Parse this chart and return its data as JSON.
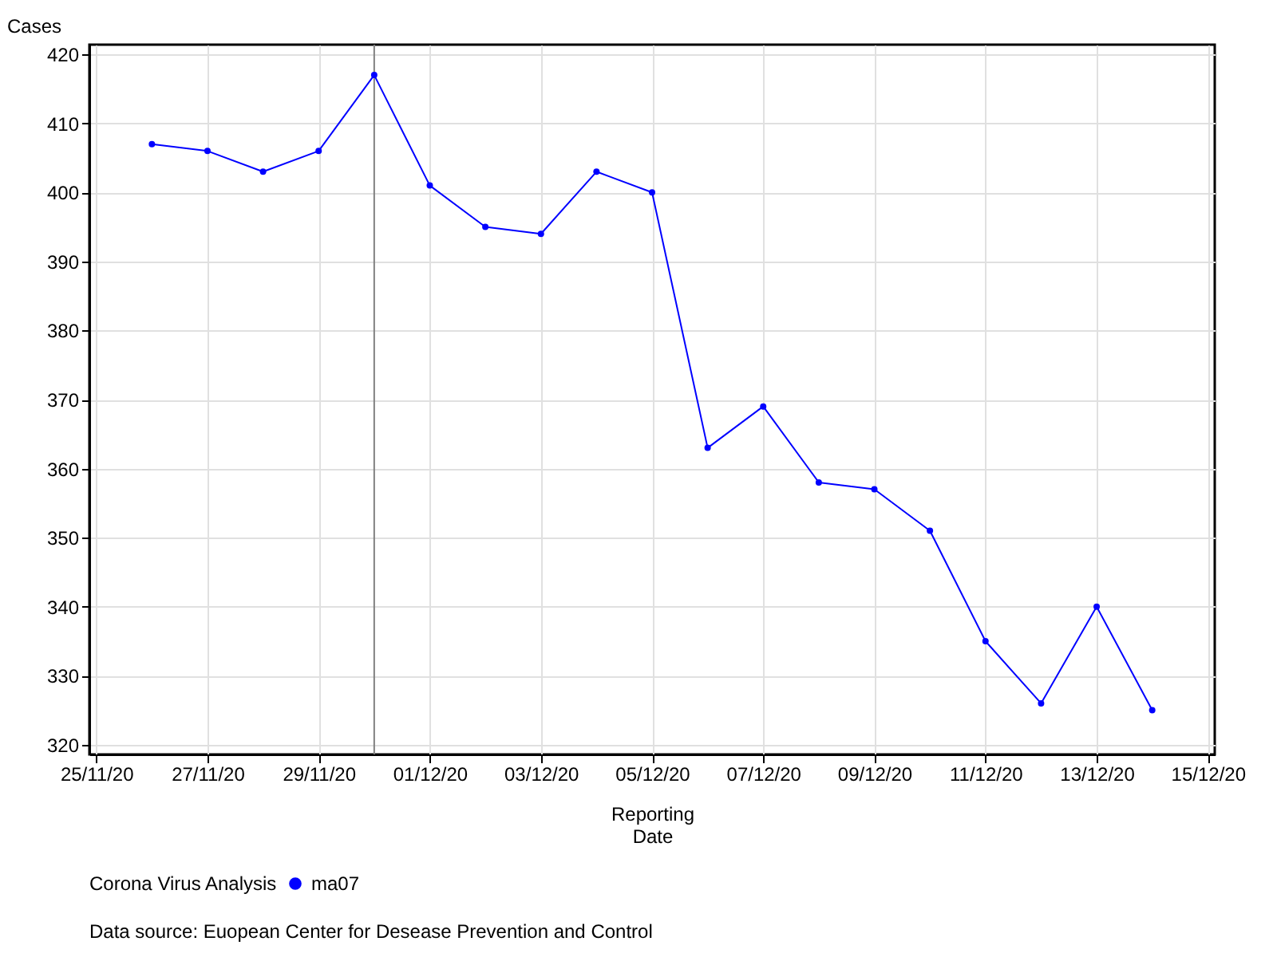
{
  "chart_data": {
    "type": "line",
    "xlabel": "Reporting Date",
    "ylabel": "Cases",
    "legend_title": "Corona Virus Analysis",
    "x": [
      "--11-26",
      "--11-27",
      "--11-28",
      "--11-29",
      "--11-30",
      "--12-01",
      "--12-02",
      "--12-03",
      "--12-04",
      "--12-05",
      "--12-06",
      "--12-07",
      "--12-08",
      "--12-09",
      "--12-10",
      "--12-11",
      "--12-12",
      "--12-13",
      "--12-14"
    ],
    "series": [
      {
        "name": "ma07",
        "color": "#0000ff",
        "values": [
          407,
          406,
          403,
          406,
          417,
          401,
          395,
          394,
          403,
          400,
          363,
          369,
          358,
          357,
          351,
          335,
          326,
          340,
          325
        ]
      }
    ],
    "xlim": [
      "--11-24T21:00",
      "--12-15T03:00"
    ],
    "xticks": [
      {
        "value": "--11-25",
        "label": "25/11/20"
      },
      {
        "value": "--11-27",
        "label": "27/11/20"
      },
      {
        "value": "--11-29",
        "label": "29/11/20"
      },
      {
        "value": "--12-01",
        "label": "01/12/20"
      },
      {
        "value": "--12-03",
        "label": "03/12/20"
      },
      {
        "value": "--12-05",
        "label": "05/12/20"
      },
      {
        "value": "--12-07",
        "label": "07/12/20"
      },
      {
        "value": "--12-09",
        "label": "09/12/20"
      },
      {
        "value": "--12-11",
        "label": "11/12/20"
      },
      {
        "value": "--12-13",
        "label": "13/12/20"
      },
      {
        "value": "--12-15",
        "label": "15/12/20"
      }
    ],
    "ylim": [
      318.6,
      421.4
    ],
    "yticks": [
      320,
      330,
      340,
      350,
      360,
      370,
      380,
      390,
      400,
      410,
      420
    ],
    "ref_lines": [
      {
        "axis": "x",
        "value": "--11-30",
        "color": "#808080"
      }
    ],
    "annotations": [
      "Data source: Euopean Center for Desease Prevention and Control"
    ],
    "grid": true,
    "legend": "bottom",
    "marker": "circle",
    "line_style": "solid"
  }
}
